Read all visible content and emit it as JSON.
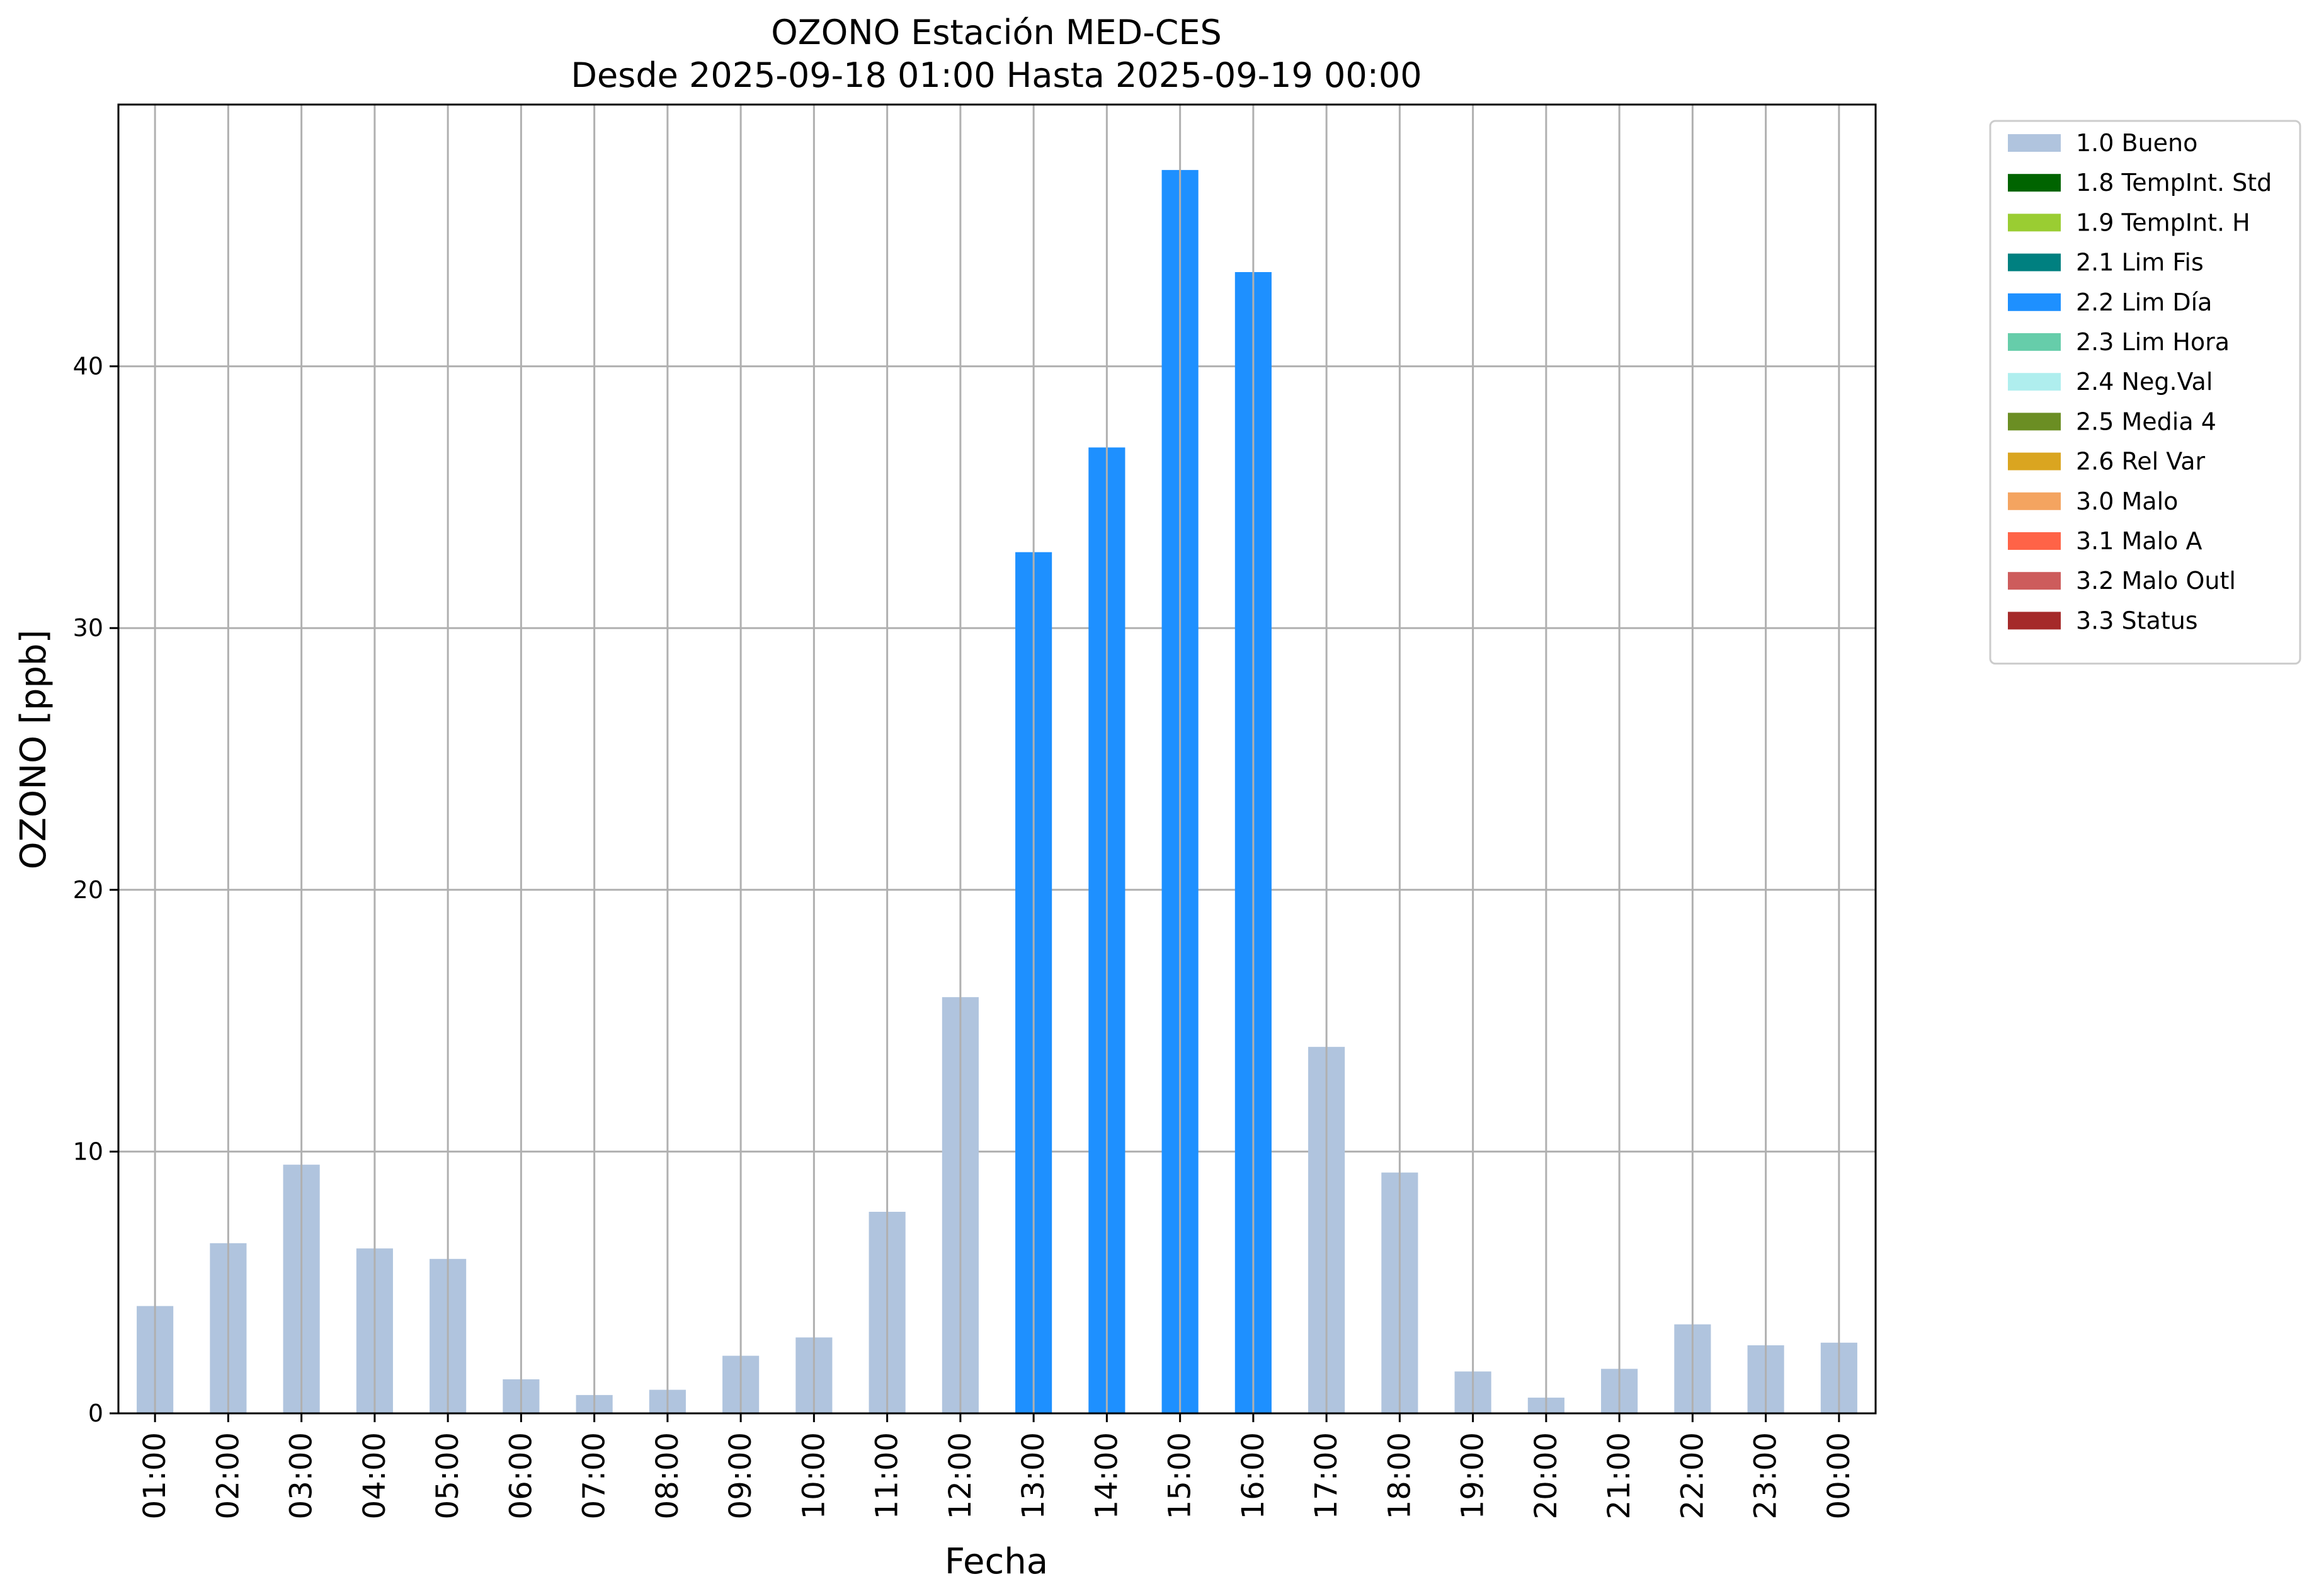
{
  "chart_data": {
    "type": "bar",
    "title": "OZONO Estación MED-CES",
    "subtitle": "Desde 2025-09-18 01:00 Hasta 2025-09-19 00:00",
    "xlabel": "Fecha",
    "ylabel": "OZONO [ppb]",
    "ylim": [
      0,
      50
    ],
    "yticks": [
      0,
      10,
      20,
      30,
      40
    ],
    "grid": true,
    "legend_position": "outside-top-right",
    "categories": [
      "01:00",
      "02:00",
      "03:00",
      "04:00",
      "05:00",
      "06:00",
      "07:00",
      "08:00",
      "09:00",
      "10:00",
      "11:00",
      "12:00",
      "13:00",
      "14:00",
      "15:00",
      "16:00",
      "17:00",
      "18:00",
      "19:00",
      "20:00",
      "21:00",
      "22:00",
      "23:00",
      "00:00"
    ],
    "values": [
      4.1,
      6.5,
      9.5,
      6.3,
      5.9,
      1.3,
      0.7,
      0.9,
      2.2,
      2.9,
      7.7,
      15.9,
      32.9,
      36.9,
      47.5,
      43.6,
      14.0,
      9.2,
      1.6,
      0.6,
      1.7,
      3.4,
      2.6,
      2.7
    ],
    "flags": [
      "1.0 Bueno",
      "1.0 Bueno",
      "1.0 Bueno",
      "1.0 Bueno",
      "1.0 Bueno",
      "1.0 Bueno",
      "1.0 Bueno",
      "1.0 Bueno",
      "1.0 Bueno",
      "1.0 Bueno",
      "1.0 Bueno",
      "1.0 Bueno",
      "2.2 Lim Día",
      "2.2 Lim Día",
      "2.2 Lim Día",
      "2.2 Lim Día",
      "1.0 Bueno",
      "1.0 Bueno",
      "1.0 Bueno",
      "1.0 Bueno",
      "1.0 Bueno",
      "1.0 Bueno",
      "1.0 Bueno",
      "1.0 Bueno"
    ],
    "legend": [
      {
        "label": "1.0 Bueno",
        "color": "#b0c4de"
      },
      {
        "label": "1.8 TempInt. Std",
        "color": "#006400"
      },
      {
        "label": "1.9 TempInt. H",
        "color": "#9acd32"
      },
      {
        "label": "2.1 Lim Fis",
        "color": "#008080"
      },
      {
        "label": "2.2 Lim Día",
        "color": "#1e90ff"
      },
      {
        "label": "2.3 Lim Hora",
        "color": "#66cdaa"
      },
      {
        "label": "2.4 Neg.Val",
        "color": "#afeeee"
      },
      {
        "label": "2.5 Media 4",
        "color": "#6b8e23"
      },
      {
        "label": "2.6 Rel Var",
        "color": "#daa520"
      },
      {
        "label": "3.0 Malo",
        "color": "#f4a460"
      },
      {
        "label": "3.1 Malo A",
        "color": "#ff6347"
      },
      {
        "label": "3.2 Malo Outl",
        "color": "#cd5c5c"
      },
      {
        "label": "3.3 Status",
        "color": "#a52a2a"
      }
    ]
  }
}
